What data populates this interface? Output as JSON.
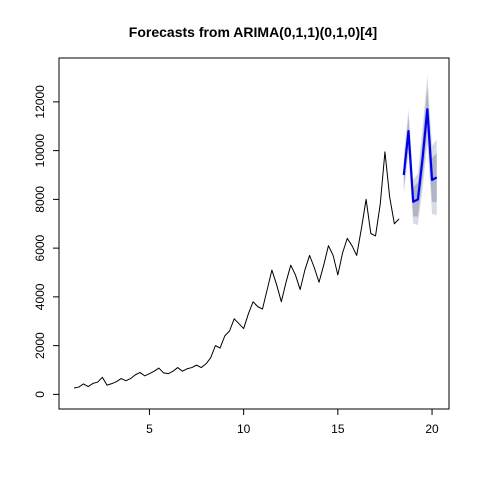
{
  "chart_data": {
    "type": "line",
    "title": "Forecasts from ARIMA(0,1,1)(0,1,0)[4]",
    "xlabel": "",
    "ylabel": "",
    "xlim": [
      0.2,
      20.9
    ],
    "ylim": [
      -600,
      13800
    ],
    "x_ticks": [
      5,
      10,
      15,
      20
    ],
    "y_ticks": [
      0,
      2000,
      4000,
      6000,
      8000,
      10000,
      12000
    ],
    "grid": false,
    "legend": "none",
    "colors": {
      "history": "#000000",
      "forecast": "#0000ee",
      "band_80": "#b0b4c8",
      "band_95": "#d8dae4"
    },
    "series": [
      {
        "kind": "history",
        "x": [
          1.0,
          1.25,
          1.5,
          1.75,
          2.0,
          2.25,
          2.5,
          2.75,
          3.0,
          3.25,
          3.5,
          3.75,
          4.0,
          4.25,
          4.5,
          4.75,
          5.0,
          5.25,
          5.5,
          5.75,
          6.0,
          6.25,
          6.5,
          6.75,
          7.0,
          7.25,
          7.5,
          7.75,
          8.0,
          8.25,
          8.5,
          8.75,
          9.0,
          9.25,
          9.5,
          9.75,
          10.0,
          10.25,
          10.5,
          10.75,
          11.0,
          11.25,
          11.5,
          11.75,
          12.0,
          12.25,
          12.5,
          12.75,
          13.0,
          13.25,
          13.5,
          13.75,
          14.0,
          14.25,
          14.5,
          14.75,
          15.0,
          15.25,
          15.5,
          15.75,
          16.0,
          16.25,
          16.5,
          16.75,
          17.0,
          17.25,
          17.5,
          17.75,
          18.0,
          18.25
        ],
        "y": [
          260,
          300,
          430,
          320,
          450,
          500,
          700,
          380,
          440,
          520,
          650,
          560,
          650,
          800,
          900,
          760,
          850,
          950,
          1080,
          880,
          850,
          950,
          1100,
          950,
          1050,
          1100,
          1200,
          1100,
          1250,
          1500,
          2000,
          1900,
          2400,
          2600,
          3100,
          2900,
          2700,
          3300,
          3800,
          3600,
          3500,
          4300,
          5100,
          4500,
          3800,
          4600,
          5300,
          4900,
          4300,
          5100,
          5700,
          5200,
          4600,
          5300,
          6100,
          5700,
          4900,
          5800,
          6400,
          6100,
          5700,
          6800,
          8000,
          6600,
          6500,
          7800,
          9950,
          8100,
          7000,
          7200
        ]
      },
      {
        "kind": "forecast",
        "x": [
          18.5,
          18.75,
          19.0,
          19.25,
          19.5,
          19.75,
          20.0,
          20.25
        ],
        "y": [
          9000,
          10800,
          7900,
          8000,
          9700,
          11700,
          8800,
          8900
        ],
        "lower80": [
          8500,
          10200,
          7300,
          7300,
          8900,
          10800,
          7900,
          7900
        ],
        "upper80": [
          9500,
          11400,
          8500,
          8700,
          10500,
          12600,
          9700,
          9900
        ],
        "lower95": [
          8200,
          9900,
          7000,
          6950,
          8450,
          10300,
          7400,
          7350
        ],
        "upper95": [
          9800,
          11700,
          8800,
          9050,
          10950,
          13100,
          10200,
          10450
        ]
      }
    ]
  }
}
